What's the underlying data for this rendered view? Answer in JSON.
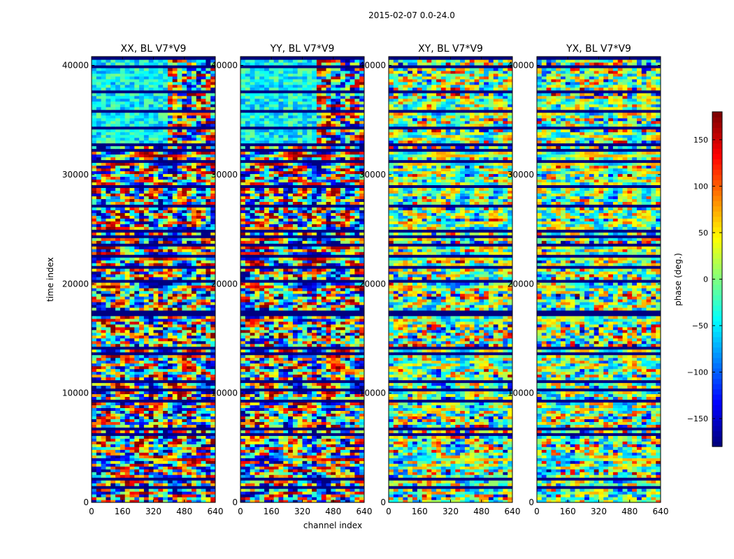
{
  "figure": {
    "suptitle": "2015-02-07 0.0-24.0"
  },
  "chart_data": {
    "type": "heatmap",
    "xlabel": "channel index",
    "ylabel": "time index",
    "xlim": [
      0,
      640
    ],
    "ylim": [
      0,
      40800
    ],
    "xticks": [
      0,
      160,
      320,
      480,
      640
    ],
    "xtick_labels": [
      "0",
      "160",
      "320",
      "480",
      "640"
    ],
    "yticks": [
      0,
      10000,
      20000,
      30000,
      40000
    ],
    "ytick_labels": [
      "0",
      "10000",
      "20000",
      "30000",
      "40000"
    ],
    "colormap": "jet",
    "panels": [
      {
        "title": "XX, BL V7*V9",
        "fringe_strength": 1.0,
        "lowcut_channel": 400
      },
      {
        "title": "YY, BL V7*V9",
        "fringe_strength": 1.0,
        "lowcut_channel": 400
      },
      {
        "title": "XY, BL V7*V9",
        "fringe_strength": 0.45,
        "lowcut_channel": 0
      },
      {
        "title": "YX, BL V7*V9",
        "fringe_strength": 0.45,
        "lowcut_channel": 0
      }
    ],
    "colorbar": {
      "label": "phase (deg.)",
      "range": [
        -180,
        180
      ],
      "ticks": [
        -150,
        -100,
        -50,
        0,
        50,
        100,
        150
      ],
      "tick_labels": [
        "−150",
        "−100",
        "−50",
        "0",
        "50",
        "100",
        "150"
      ]
    }
  }
}
